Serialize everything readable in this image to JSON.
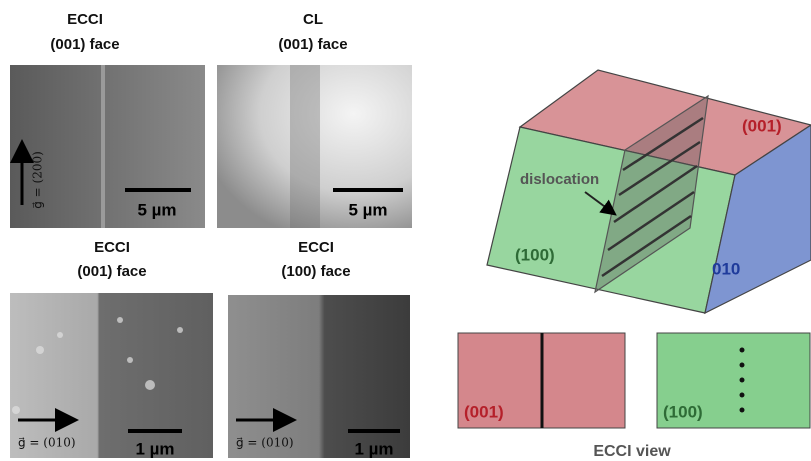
{
  "panels": [
    {
      "title": [
        "ECCI",
        "(001) face"
      ],
      "scale_bar": "5 µm",
      "g_vector": "g⃗ = (200)"
    },
    {
      "title": [
        "CL",
        "(001) face"
      ],
      "scale_bar": "5 µm"
    },
    {
      "title": [
        "ECCI",
        "(001) face"
      ],
      "scale_bar": "1 µm",
      "g_vector": "g⃗ = (010)"
    },
    {
      "title": [
        "ECCI",
        "(100) face"
      ],
      "scale_bar": "1 µm",
      "g_vector": "g⃗ = (010)"
    }
  ],
  "diagram": {
    "face_labels": {
      "top": "(001)",
      "front": "(100)",
      "side": "010"
    },
    "dislocation_label": "dislocation",
    "views": [
      {
        "label": "(001)"
      },
      {
        "label": "(100)"
      }
    ],
    "caption": "ECCI view"
  }
}
